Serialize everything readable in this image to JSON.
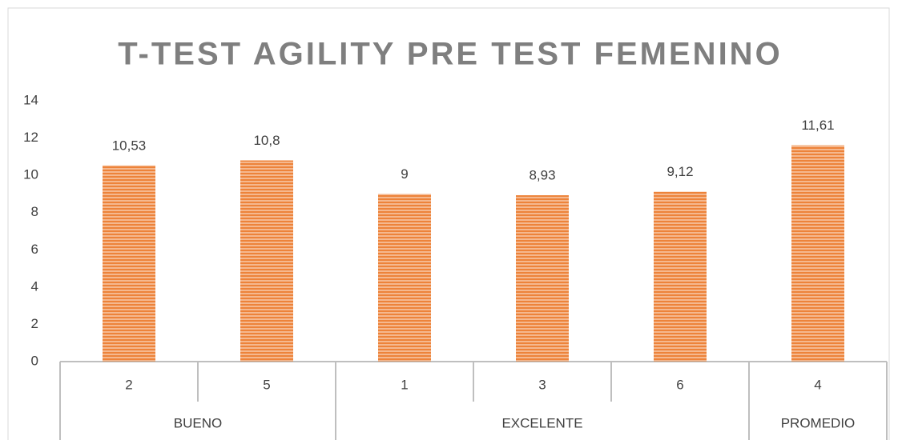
{
  "chart_data": {
    "type": "bar",
    "title": "T-TEST AGILITY   PRE TEST FEMENINO",
    "categories": [
      "2",
      "5",
      "1",
      "3",
      "6",
      "4"
    ],
    "groups": [
      {
        "name": "BUENO",
        "span": 2
      },
      {
        "name": "EXCELENTE",
        "span": 3
      },
      {
        "name": "PROMEDIO",
        "span": 1
      }
    ],
    "values": [
      10.53,
      10.8,
      9,
      8.93,
      9.12,
      11.61
    ],
    "value_labels": [
      "10,53",
      "10,8",
      "9",
      "8,93",
      "9,12",
      "11,61"
    ],
    "color": "#ed7d31",
    "ylim": [
      0,
      14
    ],
    "yticks": [
      0,
      2,
      4,
      6,
      8,
      10,
      12,
      14
    ],
    "grid": false
  }
}
